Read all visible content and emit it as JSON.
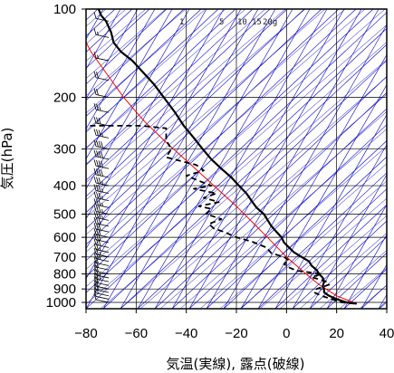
{
  "chart_data": {
    "type": "line",
    "title": "",
    "xlabel": "気温(実線), 露点(破線)",
    "ylabel": "気圧(hPa)",
    "xlim": [
      -80,
      40
    ],
    "ylim_hPa": [
      1050,
      100
    ],
    "y_scale": "log",
    "y_ticks": [
      100,
      200,
      300,
      400,
      500,
      600,
      700,
      800,
      900,
      1000
    ],
    "y_tick_labels": [
      "100",
      "200",
      "300",
      "400",
      "500",
      "600",
      "700",
      "800",
      "900",
      "1000"
    ],
    "x_ticks": [
      -80,
      -60,
      -40,
      -20,
      0,
      20,
      40
    ],
    "x_tick_labels": [
      "−80",
      "−60",
      "−40",
      "−20",
      "0",
      "20",
      "40"
    ],
    "mixing_ratio_labels": [
      "1",
      "5",
      "10",
      "15",
      "20g"
    ],
    "grid": true,
    "colors": {
      "temperature": "#000000",
      "dewpoint": "#000000",
      "reference_curve": "#ff0000",
      "diagram_lines": "#0000cc",
      "grid": "#000000",
      "wind_barbs": "#000000"
    },
    "series": [
      {
        "name": "",
        "style": "solid",
        "points": [
          [
            28,
            1010
          ],
          [
            24,
            1000
          ],
          [
            20,
            975
          ],
          [
            17,
            950
          ],
          [
            15,
            925
          ],
          [
            15,
            900
          ],
          [
            14.5,
            880
          ],
          [
            15,
            850
          ],
          [
            14.5,
            825
          ],
          [
            13,
            800
          ],
          [
            12,
            775
          ],
          [
            10,
            750
          ],
          [
            9,
            725
          ],
          [
            6,
            700
          ],
          [
            3,
            675
          ],
          [
            1,
            650
          ],
          [
            -1,
            625
          ],
          [
            -2,
            600
          ],
          [
            -4,
            575
          ],
          [
            -6,
            550
          ],
          [
            -7.5,
            525
          ],
          [
            -9,
            500
          ],
          [
            -12,
            475
          ],
          [
            -14,
            450
          ],
          [
            -16,
            425
          ],
          [
            -19,
            400
          ],
          [
            -22,
            375
          ],
          [
            -26,
            350
          ],
          [
            -30,
            325
          ],
          [
            -33.5,
            300
          ],
          [
            -37,
            275
          ],
          [
            -41,
            250
          ],
          [
            -44.5,
            225
          ],
          [
            -49,
            200
          ],
          [
            -53,
            180
          ],
          [
            -58.5,
            160
          ],
          [
            -61.5,
            150
          ],
          [
            -66,
            140
          ],
          [
            -69,
            130
          ],
          [
            -70,
            120
          ],
          [
            -71,
            115
          ],
          [
            -72,
            110
          ],
          [
            -74,
            105
          ],
          [
            -75,
            100
          ]
        ]
      },
      {
        "name": "",
        "style": "dashed",
        "points": [
          [
            27,
            1010
          ],
          [
            22,
            1000
          ],
          [
            18,
            975
          ],
          [
            14,
            950
          ],
          [
            11,
            925
          ],
          [
            12,
            900
          ],
          [
            17,
            870
          ],
          [
            16,
            850
          ],
          [
            10,
            820
          ],
          [
            14,
            800
          ],
          [
            9,
            790
          ],
          [
            4,
            780
          ],
          [
            1,
            760
          ],
          [
            -1,
            740
          ],
          [
            1,
            720
          ],
          [
            -1,
            700
          ],
          [
            -6,
            680
          ],
          [
            -8,
            650
          ],
          [
            -14,
            620
          ],
          [
            -20,
            600
          ],
          [
            -25,
            575
          ],
          [
            -29,
            560
          ],
          [
            -31,
            540
          ],
          [
            -26,
            520
          ],
          [
            -32,
            500
          ],
          [
            -30,
            480
          ],
          [
            -35,
            470
          ],
          [
            -27,
            455
          ],
          [
            -33,
            440
          ],
          [
            -28,
            425
          ],
          [
            -37,
            410
          ],
          [
            -30,
            400
          ],
          [
            -35,
            385
          ],
          [
            -40,
            370
          ],
          [
            -33,
            355
          ],
          [
            -36,
            340
          ],
          [
            -48,
            320
          ],
          [
            -46,
            300
          ],
          [
            -48,
            280
          ],
          [
            -48,
            255
          ],
          [
            -58,
            250
          ],
          [
            -80,
            250
          ]
        ]
      },
      {
        "name": "",
        "style": "solid-red",
        "points": [
          [
            28,
            1010
          ],
          [
            20,
            950
          ],
          [
            13,
            870
          ],
          [
            7,
            790
          ],
          [
            0,
            700
          ],
          [
            -6,
            620
          ],
          [
            -12,
            550
          ],
          [
            -20,
            470
          ],
          [
            -29,
            400
          ],
          [
            -38,
            340
          ],
          [
            -48,
            285
          ],
          [
            -57,
            240
          ],
          [
            -65,
            200
          ],
          [
            -72,
            165
          ],
          [
            -78,
            140
          ],
          [
            -82,
            120
          ]
        ]
      }
    ],
    "wind_barbs": [
      {
        "p": 1000,
        "kt": 10
      },
      {
        "p": 975,
        "kt": 10
      },
      {
        "p": 950,
        "kt": 15
      },
      {
        "p": 925,
        "kt": 20
      },
      {
        "p": 900,
        "kt": 20
      },
      {
        "p": 875,
        "kt": 20
      },
      {
        "p": 850,
        "kt": 25
      },
      {
        "p": 825,
        "kt": 25
      },
      {
        "p": 800,
        "kt": 20
      },
      {
        "p": 775,
        "kt": 20
      },
      {
        "p": 750,
        "kt": 20
      },
      {
        "p": 725,
        "kt": 25
      },
      {
        "p": 700,
        "kt": 25
      },
      {
        "p": 675,
        "kt": 25
      },
      {
        "p": 650,
        "kt": 30
      },
      {
        "p": 625,
        "kt": 30
      },
      {
        "p": 600,
        "kt": 30
      },
      {
        "p": 575,
        "kt": 30
      },
      {
        "p": 550,
        "kt": 30
      },
      {
        "p": 525,
        "kt": 35
      },
      {
        "p": 500,
        "kt": 35
      },
      {
        "p": 475,
        "kt": 35
      },
      {
        "p": 450,
        "kt": 35
      },
      {
        "p": 425,
        "kt": 35
      },
      {
        "p": 400,
        "kt": 35
      },
      {
        "p": 375,
        "kt": 40
      },
      {
        "p": 350,
        "kt": 40
      },
      {
        "p": 325,
        "kt": 40
      },
      {
        "p": 300,
        "kt": 40
      },
      {
        "p": 275,
        "kt": 35
      },
      {
        "p": 250,
        "kt": 30
      },
      {
        "p": 225,
        "kt": 25
      },
      {
        "p": 200,
        "kt": 20
      },
      {
        "p": 175,
        "kt": 20
      },
      {
        "p": 150,
        "kt": 15
      },
      {
        "p": 125,
        "kt": 15
      },
      {
        "p": 110,
        "kt": 10
      }
    ]
  }
}
